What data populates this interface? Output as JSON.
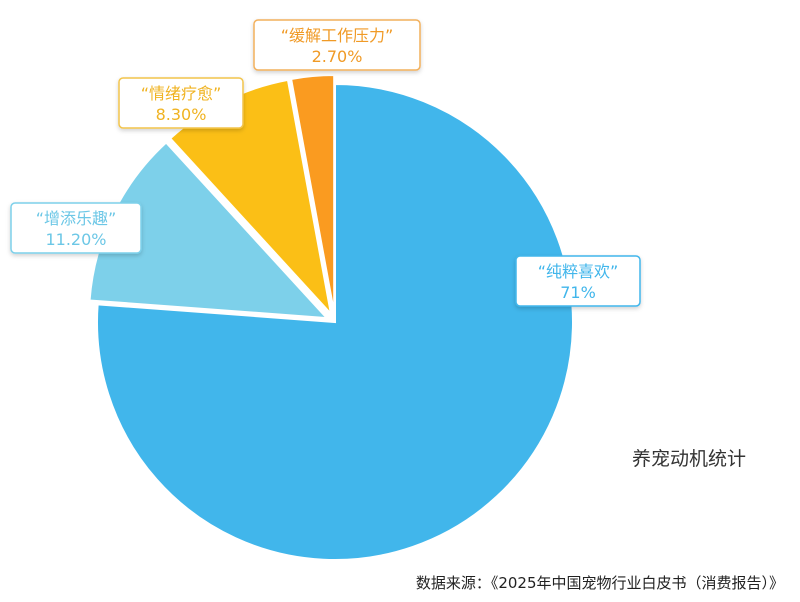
{
  "chart_data": {
    "type": "pie",
    "title": "养宠动机统计",
    "source": "数据来源：《2025年中国宠物行业白皮书（消费报告）》",
    "categories": [
      "“纯粹喜欢”",
      "“增添乐趣”",
      "“情绪疗愈”",
      "“缓解工作压力”"
    ],
    "values": [
      71,
      11.2,
      8.3,
      2.7
    ],
    "value_labels": [
      "71%",
      "11.20%",
      "8.30%",
      "2.70%"
    ],
    "colors": [
      "#41b6eb",
      "#7dd0ea",
      "#fbbf16",
      "#fa9b20"
    ],
    "label_border_colors": [
      "#41b6eb",
      "#7dd0ea",
      "#f2c44c",
      "#f2b05c"
    ],
    "label_text_colors": [
      "#41b6eb",
      "#6cc7e6",
      "#f0b322",
      "#f09a26"
    ],
    "start_angle_deg": 0,
    "direction": "clockwise",
    "legend": "none"
  }
}
